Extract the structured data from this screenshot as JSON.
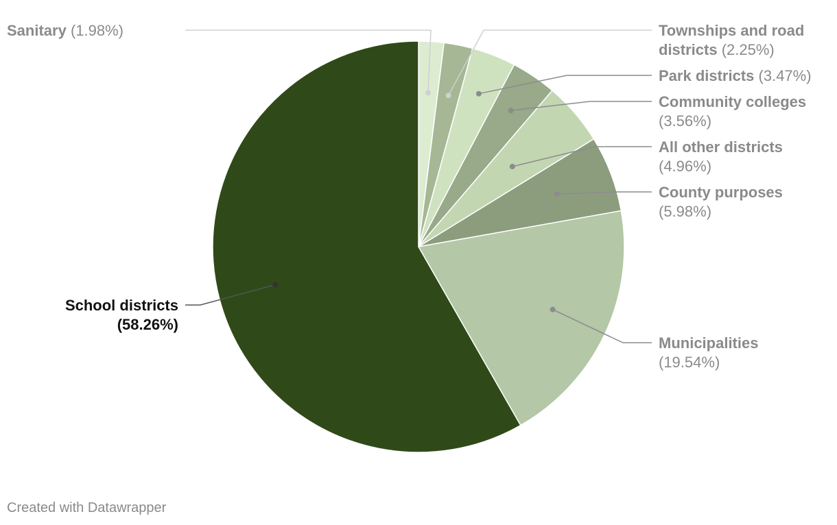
{
  "chart_data": {
    "type": "pie",
    "start_angle_deg": 0,
    "direction": "clockwise",
    "slices": [
      {
        "label": "Sanitary",
        "value_text": "(1.98%)",
        "value": 1.98,
        "color": "#dcecd1"
      },
      {
        "label": "Townships and road districts",
        "label_lines": [
          "Townships and road",
          "districts"
        ],
        "value_text": "(2.25%)",
        "value": 2.25,
        "color": "#a5b794"
      },
      {
        "label": "Park districts",
        "value_text": "(3.47%)",
        "value": 3.47,
        "color": "#cfe2c0"
      },
      {
        "label": "Community colleges",
        "value_text": "(3.56%)",
        "value": 3.56,
        "color": "#98aa89"
      },
      {
        "label": "All other districts",
        "value_text": "(4.96%)",
        "value": 4.96,
        "color": "#c3d6b2"
      },
      {
        "label": "County purposes",
        "value_text": "(5.98%)",
        "value": 5.98,
        "color": "#8c9d7e"
      },
      {
        "label": "Municipalities",
        "value_text": "(19.54%)",
        "value": 19.54,
        "color": "#b4c7a6"
      },
      {
        "label": "School districts",
        "value_text": "(58.26%)",
        "value": 58.26,
        "color": "#2f4a18"
      }
    ],
    "label_color": "#8a8a8a",
    "highlight_label_color": "#111111",
    "leader_color_light": "#d0d0d0",
    "leader_color_dark": "#8c8c8c"
  },
  "footer": {
    "credit": "Created with Datawrapper"
  }
}
